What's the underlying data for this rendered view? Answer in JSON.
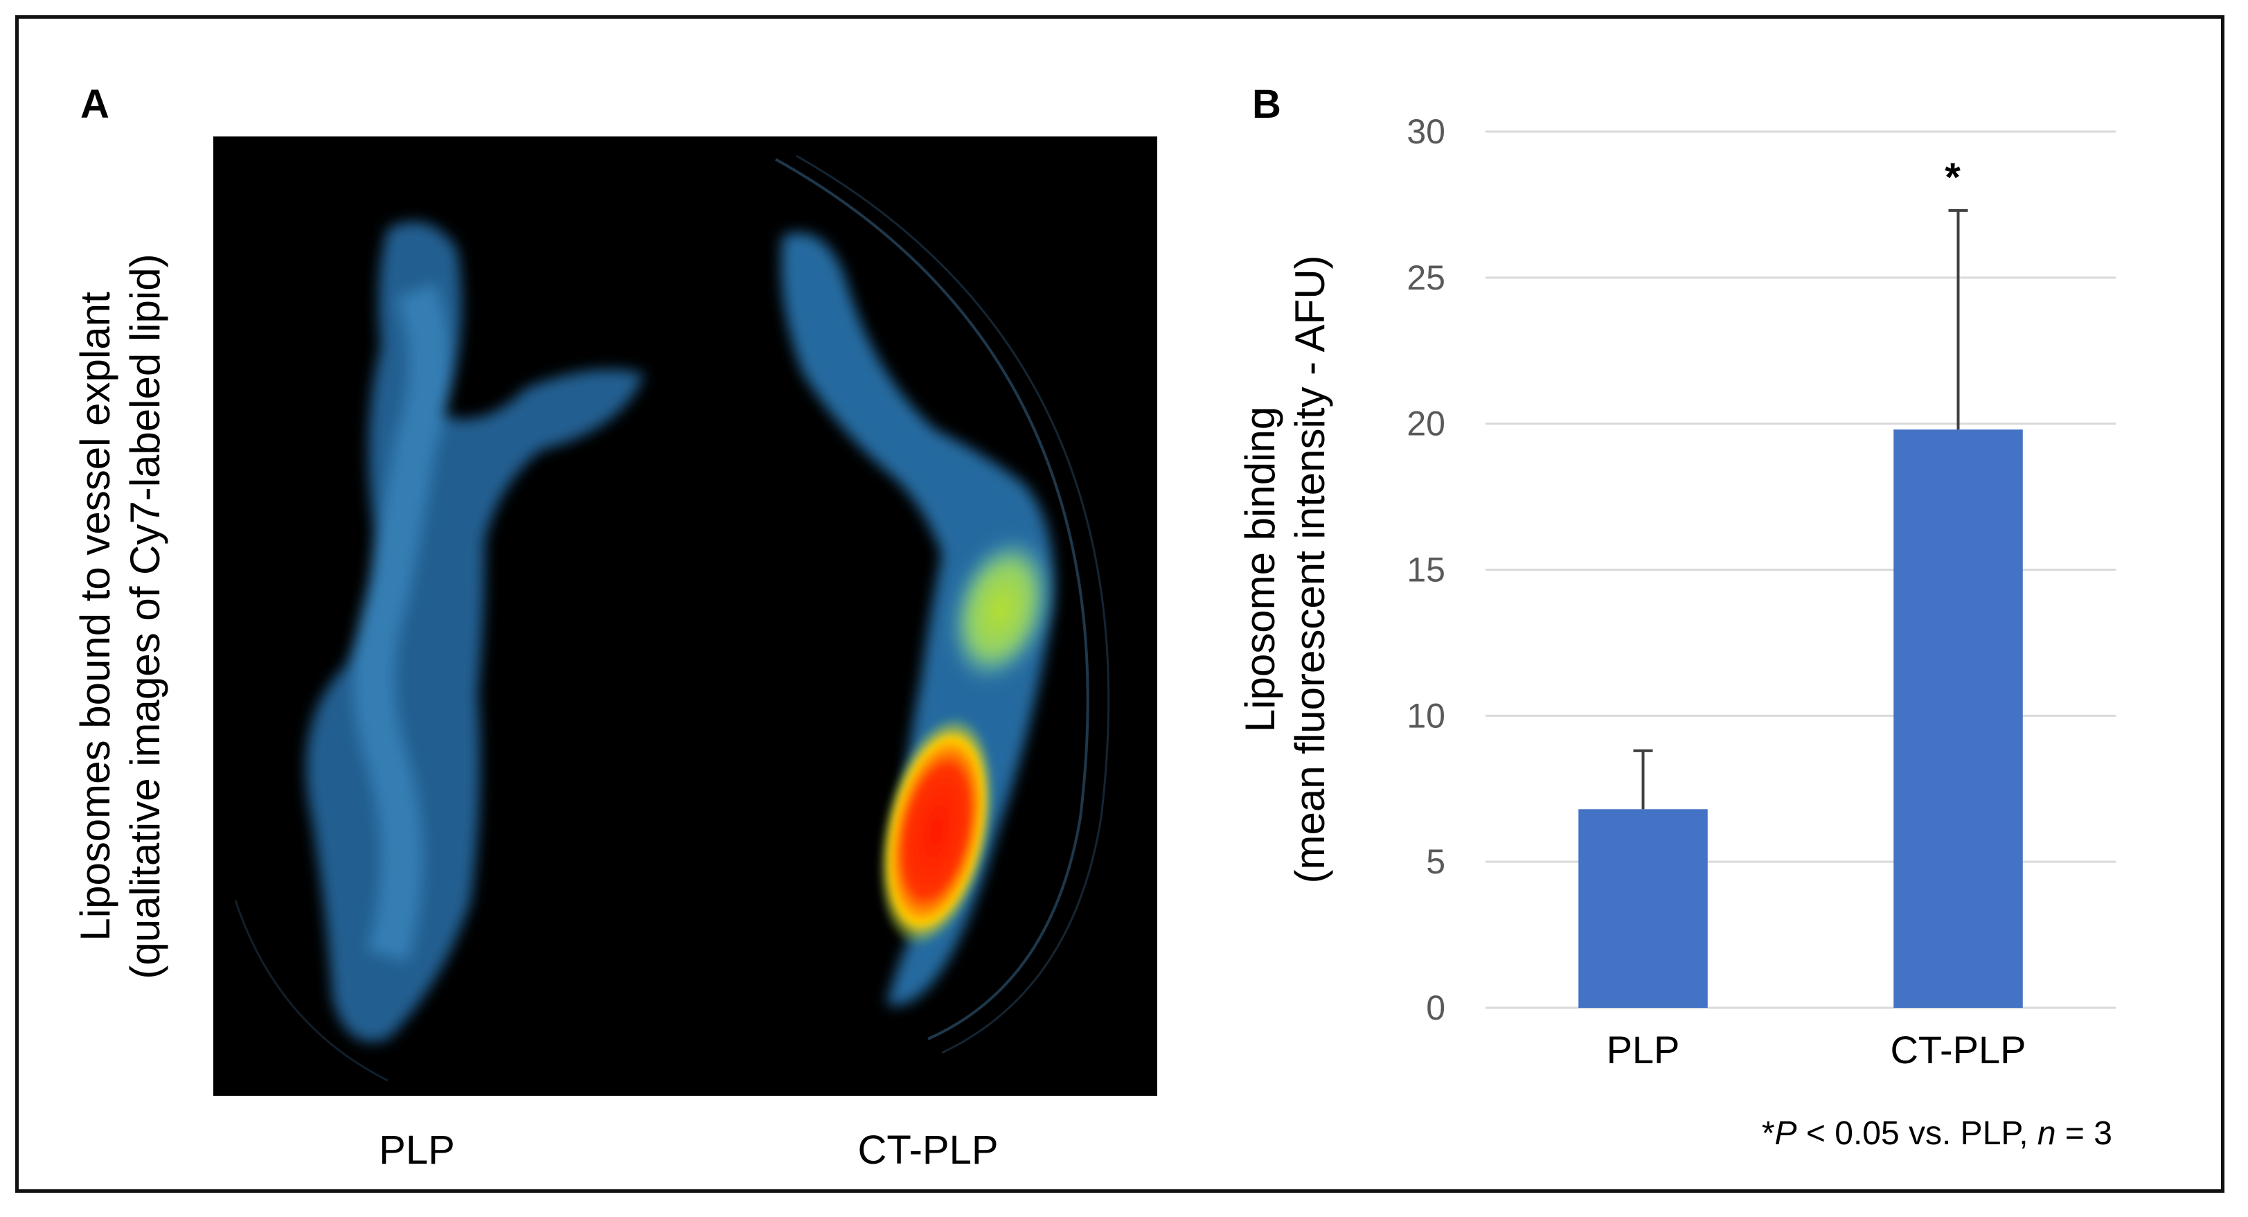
{
  "panel_a": {
    "letter": "A",
    "ylabel_line1": "Liposomes bound to vessel explant",
    "ylabel_line2": "(qualitative images of Cy7-labeled lipid)",
    "image_labels": [
      "PLP",
      "CT-PLP"
    ],
    "colors": {
      "background": "#000000",
      "vessel": "#3a8fd0",
      "hot": "#ff2a00"
    }
  },
  "panel_b": {
    "letter": "B",
    "footnote": {
      "prefix": "*",
      "p_symbol": "P",
      "middle": " < 0.05 vs. PLP, ",
      "n_symbol": "n",
      "suffix": " = 3"
    }
  },
  "chart_data": {
    "type": "bar",
    "categories": [
      "PLP",
      "CT-PLP"
    ],
    "values": [
      6.8,
      19.8
    ],
    "errors": [
      2.0,
      7.5
    ],
    "significance": [
      "",
      "*"
    ],
    "ylabel_line1": "Liposome binding",
    "ylabel_line2": "(mean fluorescent intensity - AFU)",
    "ylim": [
      0,
      30
    ],
    "yticks": [
      0,
      5,
      10,
      15,
      20,
      25,
      30
    ],
    "grid": true,
    "bar_color": "#4472c4",
    "grid_color": "#d9d9d9",
    "error_color": "#404040"
  }
}
